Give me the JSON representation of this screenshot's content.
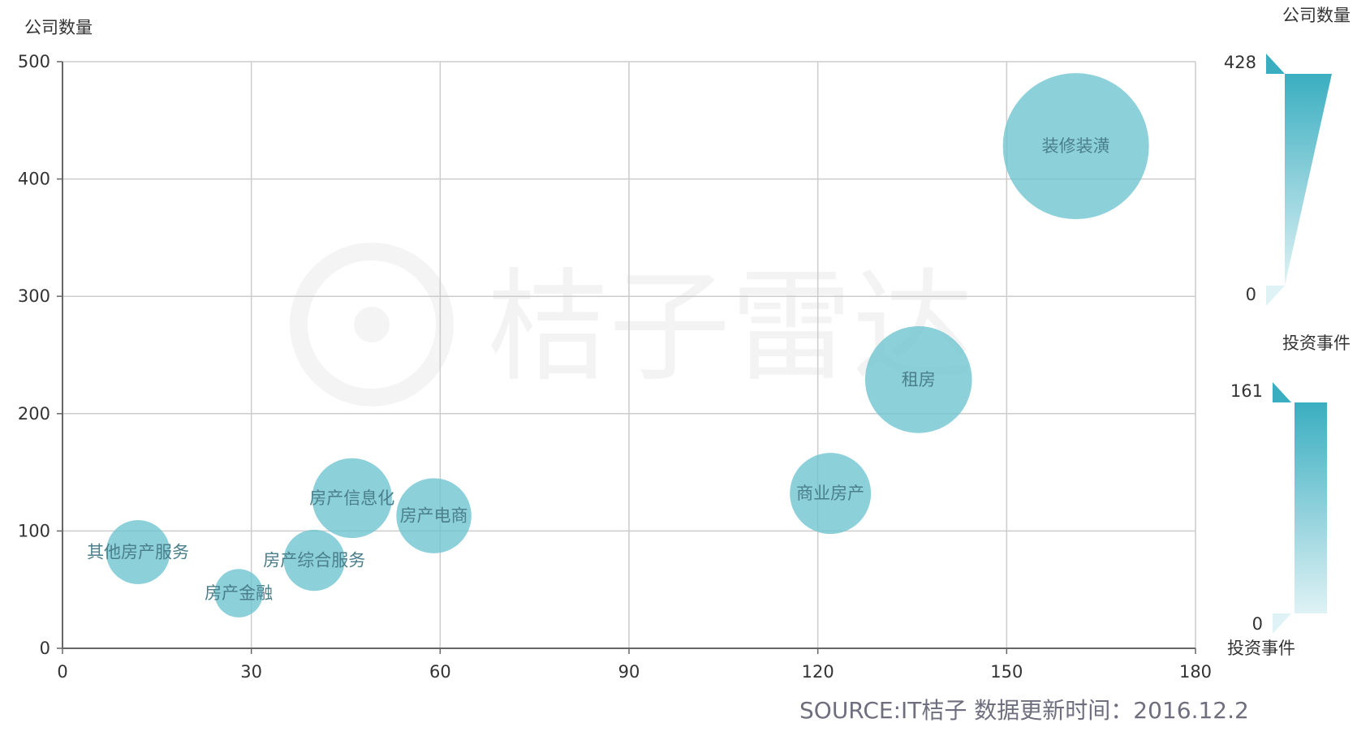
{
  "chart_data": {
    "type": "scatter",
    "subtype": "bubble",
    "ylabel": "公司数量",
    "xlim": [
      0,
      180
    ],
    "ylim": [
      0,
      500
    ],
    "x_ticks": [
      "0",
      "30",
      "60",
      "90",
      "120",
      "150",
      "180"
    ],
    "y_ticks": [
      "0",
      "100",
      "200",
      "300",
      "400",
      "500"
    ],
    "grid": true,
    "points": [
      {
        "label": "装修装潢",
        "x": 161,
        "y": 428,
        "size": 428
      },
      {
        "label": "租房",
        "x": 136,
        "y": 229,
        "size": 229
      },
      {
        "label": "商业房产",
        "x": 122,
        "y": 132,
        "size": 132
      },
      {
        "label": "房产信息化",
        "x": 46,
        "y": 128,
        "size": 128
      },
      {
        "label": "房产电商",
        "x": 59,
        "y": 113,
        "size": 113
      },
      {
        "label": "其他房产服务",
        "x": 12,
        "y": 82,
        "size": 82
      },
      {
        "label": "房产综合服务",
        "x": 40,
        "y": 75,
        "size": 75
      },
      {
        "label": "房产金融",
        "x": 28,
        "y": 47,
        "size": 47
      }
    ],
    "visual_maps": [
      {
        "title": "公司数量",
        "max_label": "428",
        "min_label": "0",
        "max": 428,
        "min": 0,
        "encodes": "size"
      },
      {
        "title": "投资事件",
        "max_label": "161",
        "min_label": "0",
        "max": 161,
        "min": 0,
        "encodes": "color",
        "bottom_text": "投资事件"
      }
    ],
    "colors": {
      "bubble": "#6cc3cf",
      "gradient_top": "#3aaec0",
      "gradient_bottom": "#dff2f5"
    }
  },
  "watermark": "桔子雷达",
  "source_text": "SOURCE:IT桔子  数据更新时间：2016.12.2"
}
